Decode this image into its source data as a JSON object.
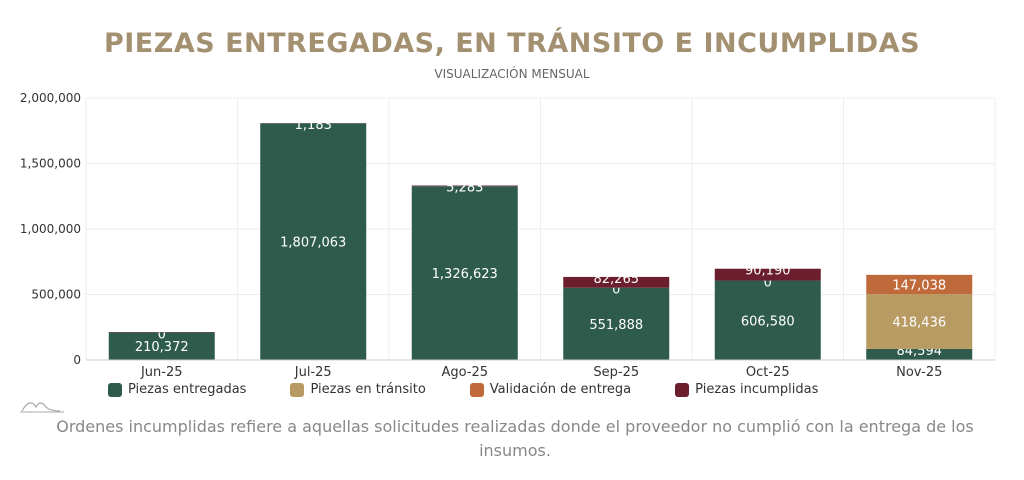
{
  "title": "PIEZAS ENTREGADAS, EN TRÁNSITO E INCUMPLIDAS",
  "subtitle": "VISUALIZACIÓN MENSUAL",
  "note": "Ordenes incumplidas refiere a aquellas solicitudes realizadas donde el proveedor no cumplió con la entrega de los insumos.",
  "chart_data": {
    "type": "bar",
    "stacked": true,
    "categories": [
      "Jun-25",
      "Jul-25",
      "Ago-25",
      "Sep-25",
      "Oct-25",
      "Nov-25"
    ],
    "ylim": [
      0,
      2000000
    ],
    "yticks": [
      0,
      500000,
      1000000,
      1500000,
      2000000
    ],
    "ytick_labels": [
      "0",
      "500,000",
      "1,000,000",
      "1,500,000",
      "2,000,000"
    ],
    "grid": true,
    "legend": "bottom",
    "series": [
      {
        "name": "Piezas entregadas",
        "color": "#2f5b4c",
        "values": [
          210372,
          1807063,
          1326623,
          551888,
          606580,
          84594
        ],
        "labels": [
          "210,372",
          "1,807,063",
          "1,326,623",
          "551,888",
          "606,580",
          "84,594"
        ]
      },
      {
        "name": "Piezas en tránsito",
        "color": "#b89a63",
        "values": [
          0,
          0,
          0,
          0,
          0,
          418436
        ],
        "labels": [
          "0",
          "",
          "",
          "",
          "",
          "418,436"
        ]
      },
      {
        "name": "Validación de entrega",
        "color": "#c06a3b",
        "values": [
          0,
          0,
          0,
          0,
          0,
          147038
        ],
        "labels": [
          "",
          "",
          "",
          "0",
          "0",
          "147,038"
        ]
      },
      {
        "name": "Piezas incumplidas",
        "color": "#6b1f2e",
        "values": [
          3000,
          1183,
          5283,
          82265,
          90190,
          0
        ],
        "labels": [
          "",
          "1,183",
          "5,283",
          "82,265",
          "90,190",
          ""
        ]
      }
    ]
  }
}
